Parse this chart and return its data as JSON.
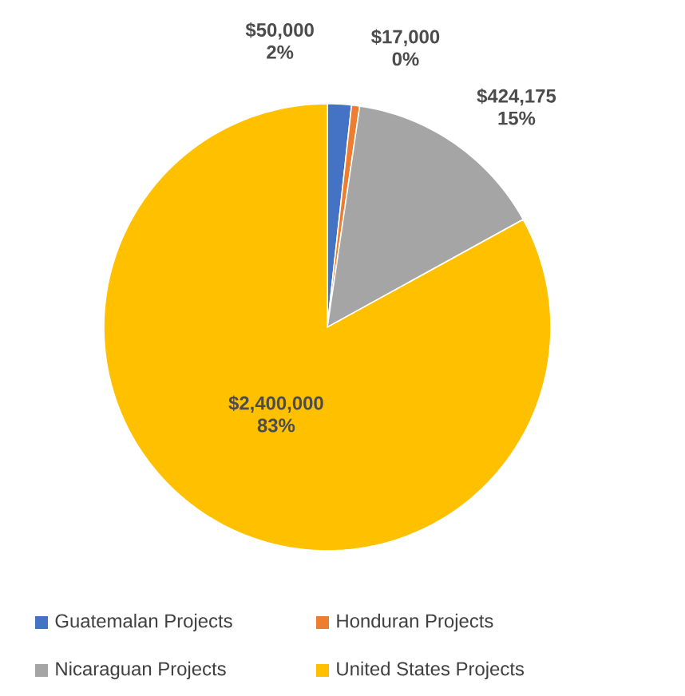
{
  "chart_data": {
    "type": "pie",
    "categories": [
      "Guatemalan Projects",
      "Honduran Projects",
      "Nicaraguan Projects",
      "United States Projects"
    ],
    "values": [
      50000,
      17000,
      424175,
      2400000
    ],
    "colors": [
      "#4472c4",
      "#ed7d31",
      "#a5a5a5",
      "#ffc000"
    ],
    "value_labels": [
      "$50,000 2%",
      "$17,000 0%",
      "$424,175 15%",
      "$2,400,000 83%"
    ],
    "legend": "bottom"
  }
}
